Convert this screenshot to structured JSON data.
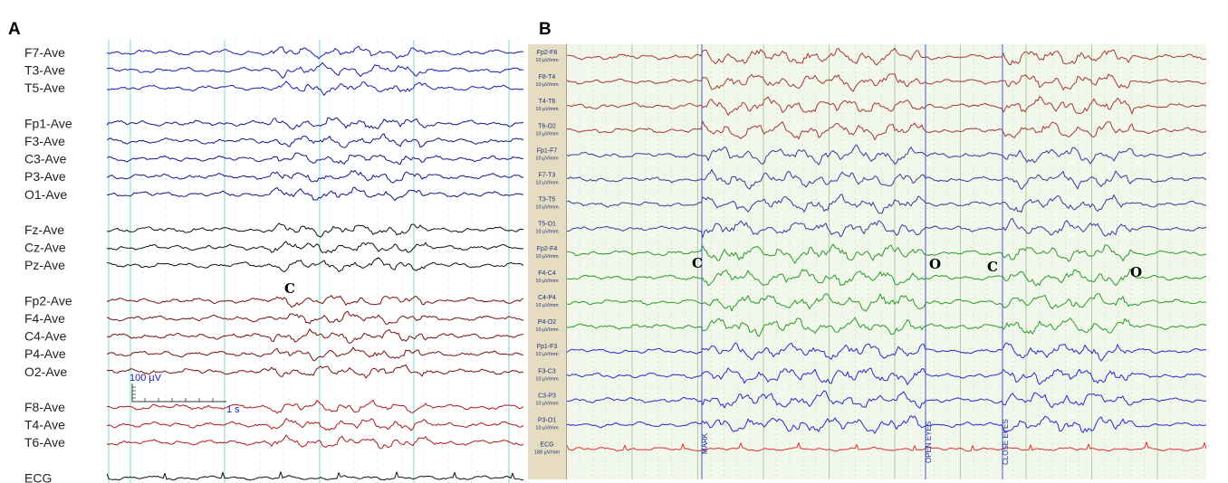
{
  "panels": [
    {
      "id": "A",
      "letter": "A",
      "groups": [
        {
          "color": "#1a1ab4",
          "channels": [
            "F7-Ave",
            "T3-Ave",
            "T5-Ave"
          ]
        },
        {
          "color": "#14148c",
          "channels": [
            "Fp1-Ave",
            "F3-Ave",
            "C3-Ave",
            "P3-Ave",
            "O1-Ave"
          ]
        },
        {
          "color": "#111111",
          "channels": [
            "Fz-Ave",
            "Cz-Ave",
            "Pz-Ave"
          ]
        },
        {
          "color": "#7a1010",
          "channels": [
            "Fp2-Ave",
            "F4-Ave",
            "C4-Ave",
            "P4-Ave",
            "O2-Ave"
          ]
        },
        {
          "color": "#b01818",
          "channels": [
            "F8-Ave",
            "T4-Ave",
            "T6-Ave"
          ]
        },
        {
          "color": "#111111",
          "channels": [
            "ECG"
          ]
        }
      ],
      "calibration": {
        "amplitude": "100 µV",
        "time": "1 s"
      },
      "markers": [
        {
          "label": "C"
        }
      ]
    },
    {
      "id": "B",
      "letter": "B",
      "sensitivity": "10 µV/mm",
      "ecg_sensitivity": "188 µV/mm",
      "groups": [
        {
          "color": "#a83838",
          "channels": [
            "Fp2-F8",
            "F8-T4",
            "T4-T6",
            "T6-O2"
          ]
        },
        {
          "color": "#3a3aa0",
          "channels": [
            "Fp1-F7",
            "F7-T3",
            "T3-T5",
            "T5-O1"
          ]
        },
        {
          "color": "#2c9a2c",
          "channels": [
            "Fp2-F4",
            "F4-C4",
            "C4-P4",
            "P4-O2"
          ]
        },
        {
          "color": "#2a2ad0",
          "channels": [
            "Fp1-F3",
            "F3-C3",
            "C3-P3",
            "P3-O1"
          ]
        },
        {
          "color": "#e03030",
          "channels": [
            "ECG"
          ]
        }
      ],
      "events": [
        "MARK",
        "OPEN EYES",
        "CLOSE EYES"
      ],
      "markers": [
        {
          "label": "C"
        },
        {
          "label": "O"
        },
        {
          "label": "C"
        },
        {
          "label": "O"
        }
      ]
    }
  ]
}
